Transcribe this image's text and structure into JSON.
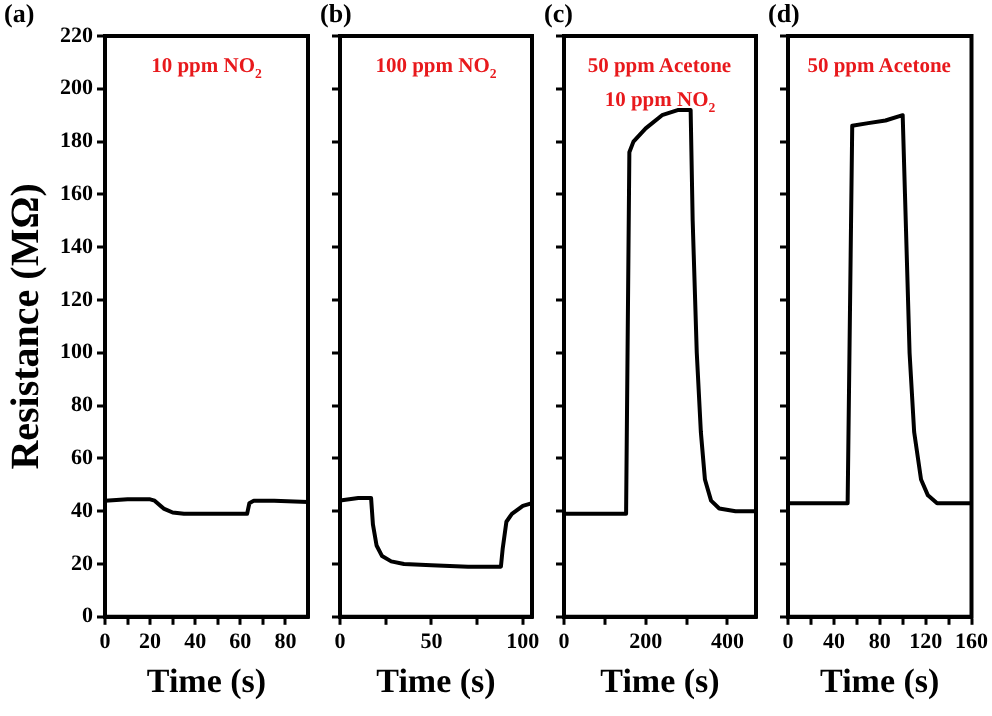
{
  "chart_data": [
    {
      "type": "line",
      "title": "(a)",
      "xlabel": "Time (s)",
      "ylabel": "Resistance (MΩ)",
      "annotations": [
        "10 ppm NO$_{2}$"
      ],
      "grid": false,
      "marker": "none",
      "line_style": "solid",
      "xlim": [
        0,
        90
      ],
      "ylim": [
        0,
        220
      ],
      "xticks": [
        0,
        {
          "value": 10,
          "label": null
        },
        20,
        {
          "value": 30,
          "label": null
        },
        40,
        {
          "value": 50,
          "label": null
        },
        60,
        {
          "value": 70,
          "label": null
        },
        80
      ],
      "yticks": [
        0,
        20,
        40,
        60,
        80,
        100,
        120,
        140,
        160,
        180,
        200,
        220
      ],
      "series": [
        {
          "color": "#000000",
          "x": [
            0,
            10,
            20,
            22,
            26,
            30,
            35,
            50,
            63,
            64,
            66,
            75,
            90
          ],
          "values": [
            44,
            44.5,
            44.5,
            44,
            41,
            39.5,
            39,
            39,
            39,
            43,
            44,
            44,
            43.5
          ]
        }
      ]
    },
    {
      "type": "line",
      "title": "(b)",
      "xlabel": "Time (s)",
      "annotations": [
        "100 ppm NO$_{2}$"
      ],
      "grid": false,
      "marker": "none",
      "line_style": "solid",
      "tick_labels": "x",
      "xlim": [
        0,
        105
      ],
      "ylim": [
        0,
        220
      ],
      "xticks": [
        0,
        {
          "value": 25,
          "label": null
        },
        50,
        {
          "value": 75,
          "label": null
        },
        100
      ],
      "yticks": [
        0,
        20,
        40,
        60,
        80,
        100,
        120,
        140,
        160,
        180,
        200,
        220
      ],
      "series": [
        {
          "color": "#000000",
          "x": [
            0,
            10,
            17,
            18,
            20,
            23,
            28,
            35,
            50,
            70,
            88,
            89,
            91,
            94,
            100,
            105
          ],
          "values": [
            44,
            45,
            45,
            35,
            27,
            23,
            21,
            20,
            19.5,
            19,
            19,
            26,
            36,
            39,
            42,
            43
          ]
        }
      ]
    },
    {
      "type": "line",
      "title": "(c)",
      "xlabel": "Time (s)",
      "annotations": [
        "50 ppm Acetone",
        "10 ppm NO$_{2}$"
      ],
      "grid": false,
      "marker": "none",
      "line_style": "solid",
      "tick_labels": "x",
      "xlim": [
        0,
        470
      ],
      "ylim": [
        0,
        220
      ],
      "xticks": [
        0,
        {
          "value": 100,
          "label": null
        },
        200,
        {
          "value": 300,
          "label": null
        },
        400
      ],
      "yticks": [
        0,
        20,
        40,
        60,
        80,
        100,
        120,
        140,
        160,
        180,
        200,
        220
      ],
      "series": [
        {
          "color": "#000000",
          "x": [
            0,
            100,
            152,
            160,
            170,
            200,
            240,
            280,
            310,
            315,
            325,
            335,
            345,
            360,
            380,
            420,
            470
          ],
          "values": [
            39,
            39,
            39,
            176,
            180,
            185,
            190,
            192,
            192,
            150,
            100,
            70,
            52,
            44,
            41,
            40,
            40
          ]
        }
      ]
    },
    {
      "type": "line",
      "title": "(d)",
      "xlabel": "Time (s)",
      "annotations": [
        "50 ppm Acetone"
      ],
      "grid": false,
      "marker": "none",
      "line_style": "solid",
      "tick_labels": "x",
      "xlim": [
        0,
        160
      ],
      "ylim": [
        0,
        220
      ],
      "xticks": [
        0,
        {
          "value": 20,
          "label": null
        },
        40,
        {
          "value": 60,
          "label": null
        },
        80,
        {
          "value": 100,
          "label": null
        },
        120,
        {
          "value": 140,
          "label": null
        },
        160
      ],
      "yticks": [
        0,
        20,
        40,
        60,
        80,
        100,
        120,
        140,
        160,
        180,
        200,
        220
      ],
      "series": [
        {
          "color": "#000000",
          "x": [
            0,
            30,
            52,
            56,
            70,
            85,
            100,
            102,
            106,
            110,
            116,
            122,
            130,
            145,
            160
          ],
          "values": [
            43,
            43,
            43,
            186,
            187,
            188,
            190,
            160,
            100,
            70,
            52,
            46,
            43,
            43,
            43
          ]
        }
      ]
    }
  ]
}
